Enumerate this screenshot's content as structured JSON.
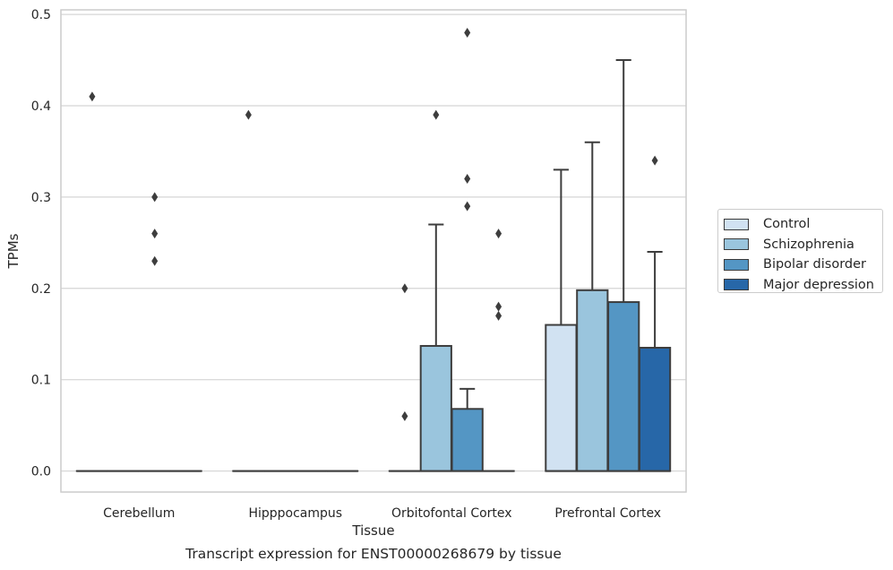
{
  "chart_data": {
    "type": "box",
    "title": "Transcript expression for ENST00000268679 by tissue",
    "xlabel": "Tissue",
    "ylabel": "TPMs",
    "ylim": [
      -0.023,
      0.505
    ],
    "yticks": [
      "0.0",
      "0.1",
      "0.2",
      "0.3",
      "0.4",
      "0.5"
    ],
    "grid": true,
    "legend_position": "right",
    "categories": [
      "Cerebellum",
      "Hipppocampus",
      "Orbitofontal Cortex",
      "Prefrontal Cortex"
    ],
    "series": [
      {
        "name": "Control",
        "color": "#d1e2f2",
        "boxes": [
          {
            "q1": 0,
            "median": 0,
            "q3": 0,
            "whisker_low": 0,
            "whisker_high": 0,
            "outliers": [
              0.41
            ]
          },
          {
            "q1": 0,
            "median": 0,
            "q3": 0,
            "whisker_low": 0,
            "whisker_high": 0,
            "outliers": [
              0.39
            ]
          },
          {
            "q1": 0,
            "median": 0,
            "q3": 0,
            "whisker_low": 0,
            "whisker_high": 0,
            "outliers": [
              0.2,
              0.06
            ]
          },
          {
            "q1": 0,
            "median": 0,
            "q3": 0.16,
            "whisker_low": 0,
            "whisker_high": 0.33,
            "outliers": []
          }
        ]
      },
      {
        "name": "Schizophrenia",
        "color": "#9ac5dd",
        "boxes": [
          {
            "q1": 0,
            "median": 0,
            "q3": 0,
            "whisker_low": 0,
            "whisker_high": 0,
            "outliers": []
          },
          {
            "q1": 0,
            "median": 0,
            "q3": 0,
            "whisker_low": 0,
            "whisker_high": 0,
            "outliers": []
          },
          {
            "q1": 0,
            "median": 0,
            "q3": 0.137,
            "whisker_low": 0,
            "whisker_high": 0.27,
            "outliers": [
              0.39
            ]
          },
          {
            "q1": 0,
            "median": 0,
            "q3": 0.198,
            "whisker_low": 0,
            "whisker_high": 0.36,
            "outliers": []
          }
        ]
      },
      {
        "name": "Bipolar disorder",
        "color": "#5496c4",
        "boxes": [
          {
            "q1": 0,
            "median": 0,
            "q3": 0,
            "whisker_low": 0,
            "whisker_high": 0,
            "outliers": [
              0.3,
              0.26,
              0.23
            ]
          },
          {
            "q1": 0,
            "median": 0,
            "q3": 0,
            "whisker_low": 0,
            "whisker_high": 0,
            "outliers": []
          },
          {
            "q1": 0,
            "median": 0,
            "q3": 0.068,
            "whisker_low": 0,
            "whisker_high": 0.09,
            "outliers": [
              0.48,
              0.32,
              0.29
            ]
          },
          {
            "q1": 0,
            "median": 0,
            "q3": 0.185,
            "whisker_low": 0,
            "whisker_high": 0.45,
            "outliers": []
          }
        ]
      },
      {
        "name": "Major depression",
        "color": "#2767a8",
        "boxes": [
          {
            "q1": 0,
            "median": 0,
            "q3": 0,
            "whisker_low": 0,
            "whisker_high": 0,
            "outliers": []
          },
          {
            "q1": 0,
            "median": 0,
            "q3": 0,
            "whisker_low": 0,
            "whisker_high": 0,
            "outliers": []
          },
          {
            "q1": 0,
            "median": 0,
            "q3": 0,
            "whisker_low": 0,
            "whisker_high": 0,
            "outliers": [
              0.26,
              0.18,
              0.17
            ]
          },
          {
            "q1": 0,
            "median": 0,
            "q3": 0.135,
            "whisker_low": 0,
            "whisker_high": 0.24,
            "outliers": [
              0.34
            ]
          }
        ]
      }
    ]
  }
}
